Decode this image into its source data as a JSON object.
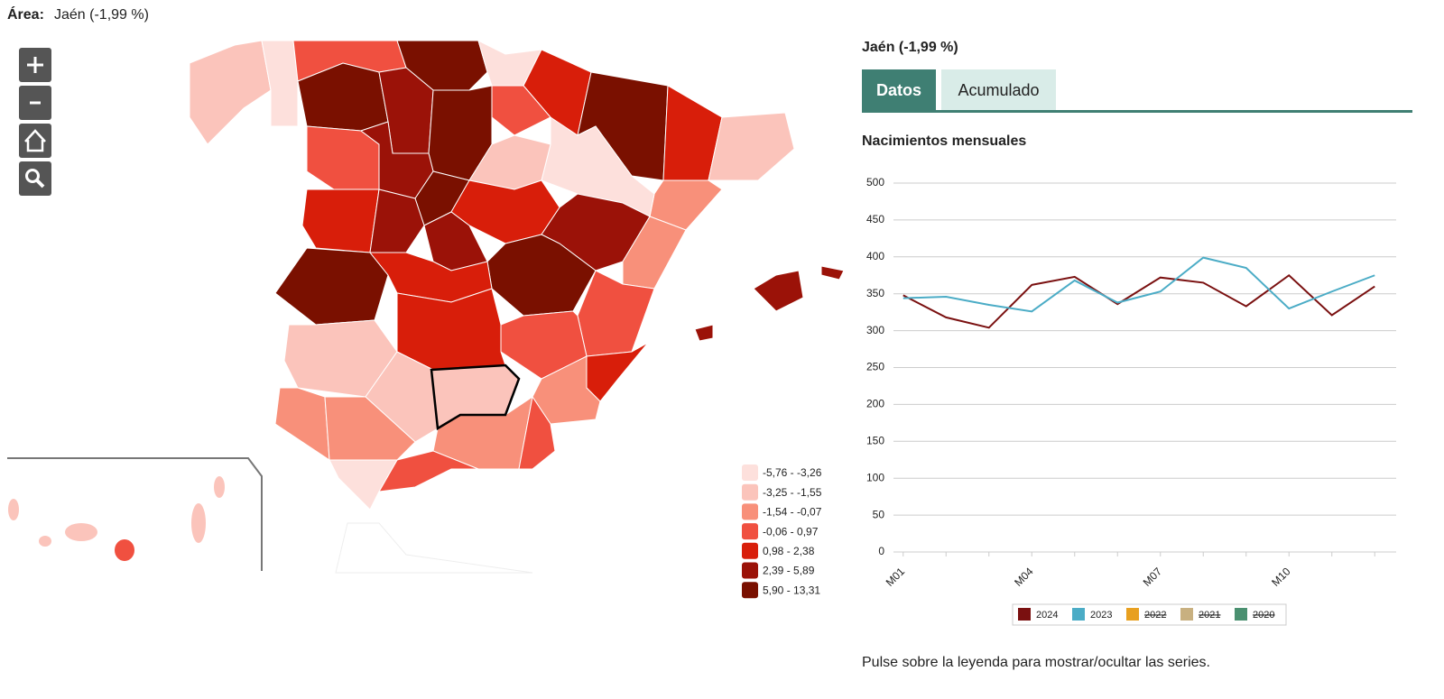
{
  "header": {
    "label": "Área:",
    "value": "Jaén (-1,99 %)"
  },
  "map_legend": [
    {
      "label": "-5,76 - -3,26",
      "color": "#fde0dc"
    },
    {
      "label": "-3,25 - -1,55",
      "color": "#fbc4bb"
    },
    {
      "label": "-1,54 - -0,07",
      "color": "#f8907a"
    },
    {
      "label": "-0,06 - 0,97",
      "color": "#f05040"
    },
    {
      "label": "0,98 - 2,38",
      "color": "#d81e0a"
    },
    {
      "label": "2,39 - 5,89",
      "color": "#9b1208"
    },
    {
      "label": "5,90 - 13,31",
      "color": "#7a1000"
    }
  ],
  "panel": {
    "title": "Jaén (-1,99 %)",
    "tabs": [
      "Datos",
      "Acumulado"
    ],
    "active_tab": 0
  },
  "chart_data": {
    "type": "line",
    "title": "Nacimientos mensuales",
    "categories": [
      "M01",
      null,
      null,
      "M04",
      null,
      null,
      "M07",
      null,
      null,
      "M10",
      null,
      null
    ],
    "series": [
      {
        "name": "2024",
        "color": "#7a1010",
        "values": [
          348,
          318,
          304,
          362,
          373,
          336,
          372,
          365,
          333,
          375,
          321,
          360
        ]
      },
      {
        "name": "2023",
        "color": "#4bacc6",
        "values": [
          344,
          346,
          335,
          326,
          368,
          338,
          353,
          399,
          385,
          330,
          353,
          375
        ]
      },
      {
        "name": "2022",
        "color": "#e8a020",
        "visible": false
      },
      {
        "name": "2021",
        "color": "#c8b080",
        "visible": false
      },
      {
        "name": "2020",
        "color": "#4a9070",
        "visible": false
      }
    ],
    "ylim": [
      0,
      500
    ],
    "yticks": [
      0,
      50,
      100,
      150,
      200,
      250,
      300,
      350,
      400,
      450,
      500
    ],
    "grid": true
  },
  "note": "Pulse sobre la leyenda para mostrar/ocultar las series."
}
